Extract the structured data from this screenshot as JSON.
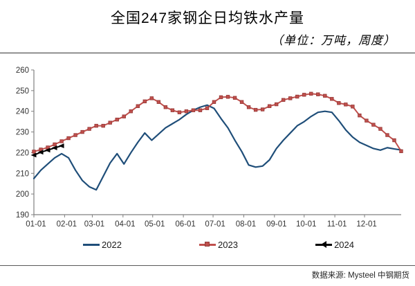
{
  "header": {
    "title": "全国247家钢企日均铁水产量",
    "subtitle": "（单位：万吨，周度）"
  },
  "footer": {
    "source_label": "数据来源: Mysteel 中钢期货"
  },
  "chart_data": {
    "type": "line",
    "title": "全国247家钢企日均铁水产量",
    "unit_note": "单位：万吨，周度",
    "frequency": "weekly",
    "grid": false,
    "legend_position": "bottom",
    "axis_color": "#7f7f7f",
    "label_color": "#333333",
    "y_axis": {
      "min": 190,
      "max": 260,
      "step": 10
    },
    "x_ticks": [
      {
        "label": "01-01",
        "day": 0
      },
      {
        "label": "02-01",
        "day": 31
      },
      {
        "label": "03-01",
        "day": 59
      },
      {
        "label": "04-01",
        "day": 90
      },
      {
        "label": "05-01",
        "day": 120
      },
      {
        "label": "06-01",
        "day": 151
      },
      {
        "label": "07-01",
        "day": 181
      },
      {
        "label": "08-01",
        "day": 212
      },
      {
        "label": "09-01",
        "day": 243
      },
      {
        "label": "10-01",
        "day": 273
      },
      {
        "label": "11-01",
        "day": 304
      },
      {
        "label": "12-01",
        "day": 334
      }
    ],
    "weeks_total": 54,
    "series": [
      {
        "name": "2022",
        "color": "#1f4e79",
        "marker": "none",
        "line_width": 2.2,
        "values": [
          207.5,
          211.5,
          214.5,
          217.5,
          219.5,
          217.5,
          211.5,
          206.5,
          203.5,
          202.0,
          208.5,
          215.0,
          219.5,
          214.5,
          220.0,
          225.0,
          229.5,
          226.0,
          229.0,
          232.0,
          234.0,
          236.0,
          238.5,
          240.5,
          242.0,
          243.0,
          241.4,
          236.5,
          232.0,
          226.0,
          220.5,
          214.0,
          213.0,
          213.5,
          216.5,
          222.0,
          226.0,
          229.5,
          233.0,
          235.0,
          237.5,
          239.5,
          240.0,
          239.5,
          235.5,
          231.0,
          227.5,
          225.0,
          223.5,
          222.0,
          221.2,
          222.4,
          221.8,
          221.3
        ]
      },
      {
        "name": "2023",
        "color": "#c0504d",
        "marker": "square",
        "marker_edge": "#943634",
        "line_width": 2,
        "values": [
          220.5,
          221.5,
          222.5,
          224.0,
          225.5,
          227.0,
          228.5,
          230.0,
          231.5,
          233.0,
          233.0,
          234.5,
          236.0,
          237.5,
          240.0,
          242.5,
          244.8,
          246.3,
          244.5,
          242.0,
          240.5,
          239.5,
          240.0,
          240.5,
          240.5,
          241.5,
          244.5,
          246.8,
          247.0,
          246.5,
          244.5,
          242.0,
          240.7,
          240.9,
          242.5,
          243.4,
          245.5,
          246.3,
          247.1,
          248.0,
          248.5,
          248.2,
          247.5,
          246.0,
          244.0,
          243.3,
          242.3,
          238.0,
          235.5,
          233.5,
          231.5,
          228.5,
          226.0,
          220.7
        ]
      },
      {
        "name": "2024",
        "color": "#000000",
        "marker": "triangle-left",
        "line_width": 2,
        "values": [
          218.8,
          220.2,
          221.2,
          222.3,
          223.3
        ]
      }
    ]
  }
}
